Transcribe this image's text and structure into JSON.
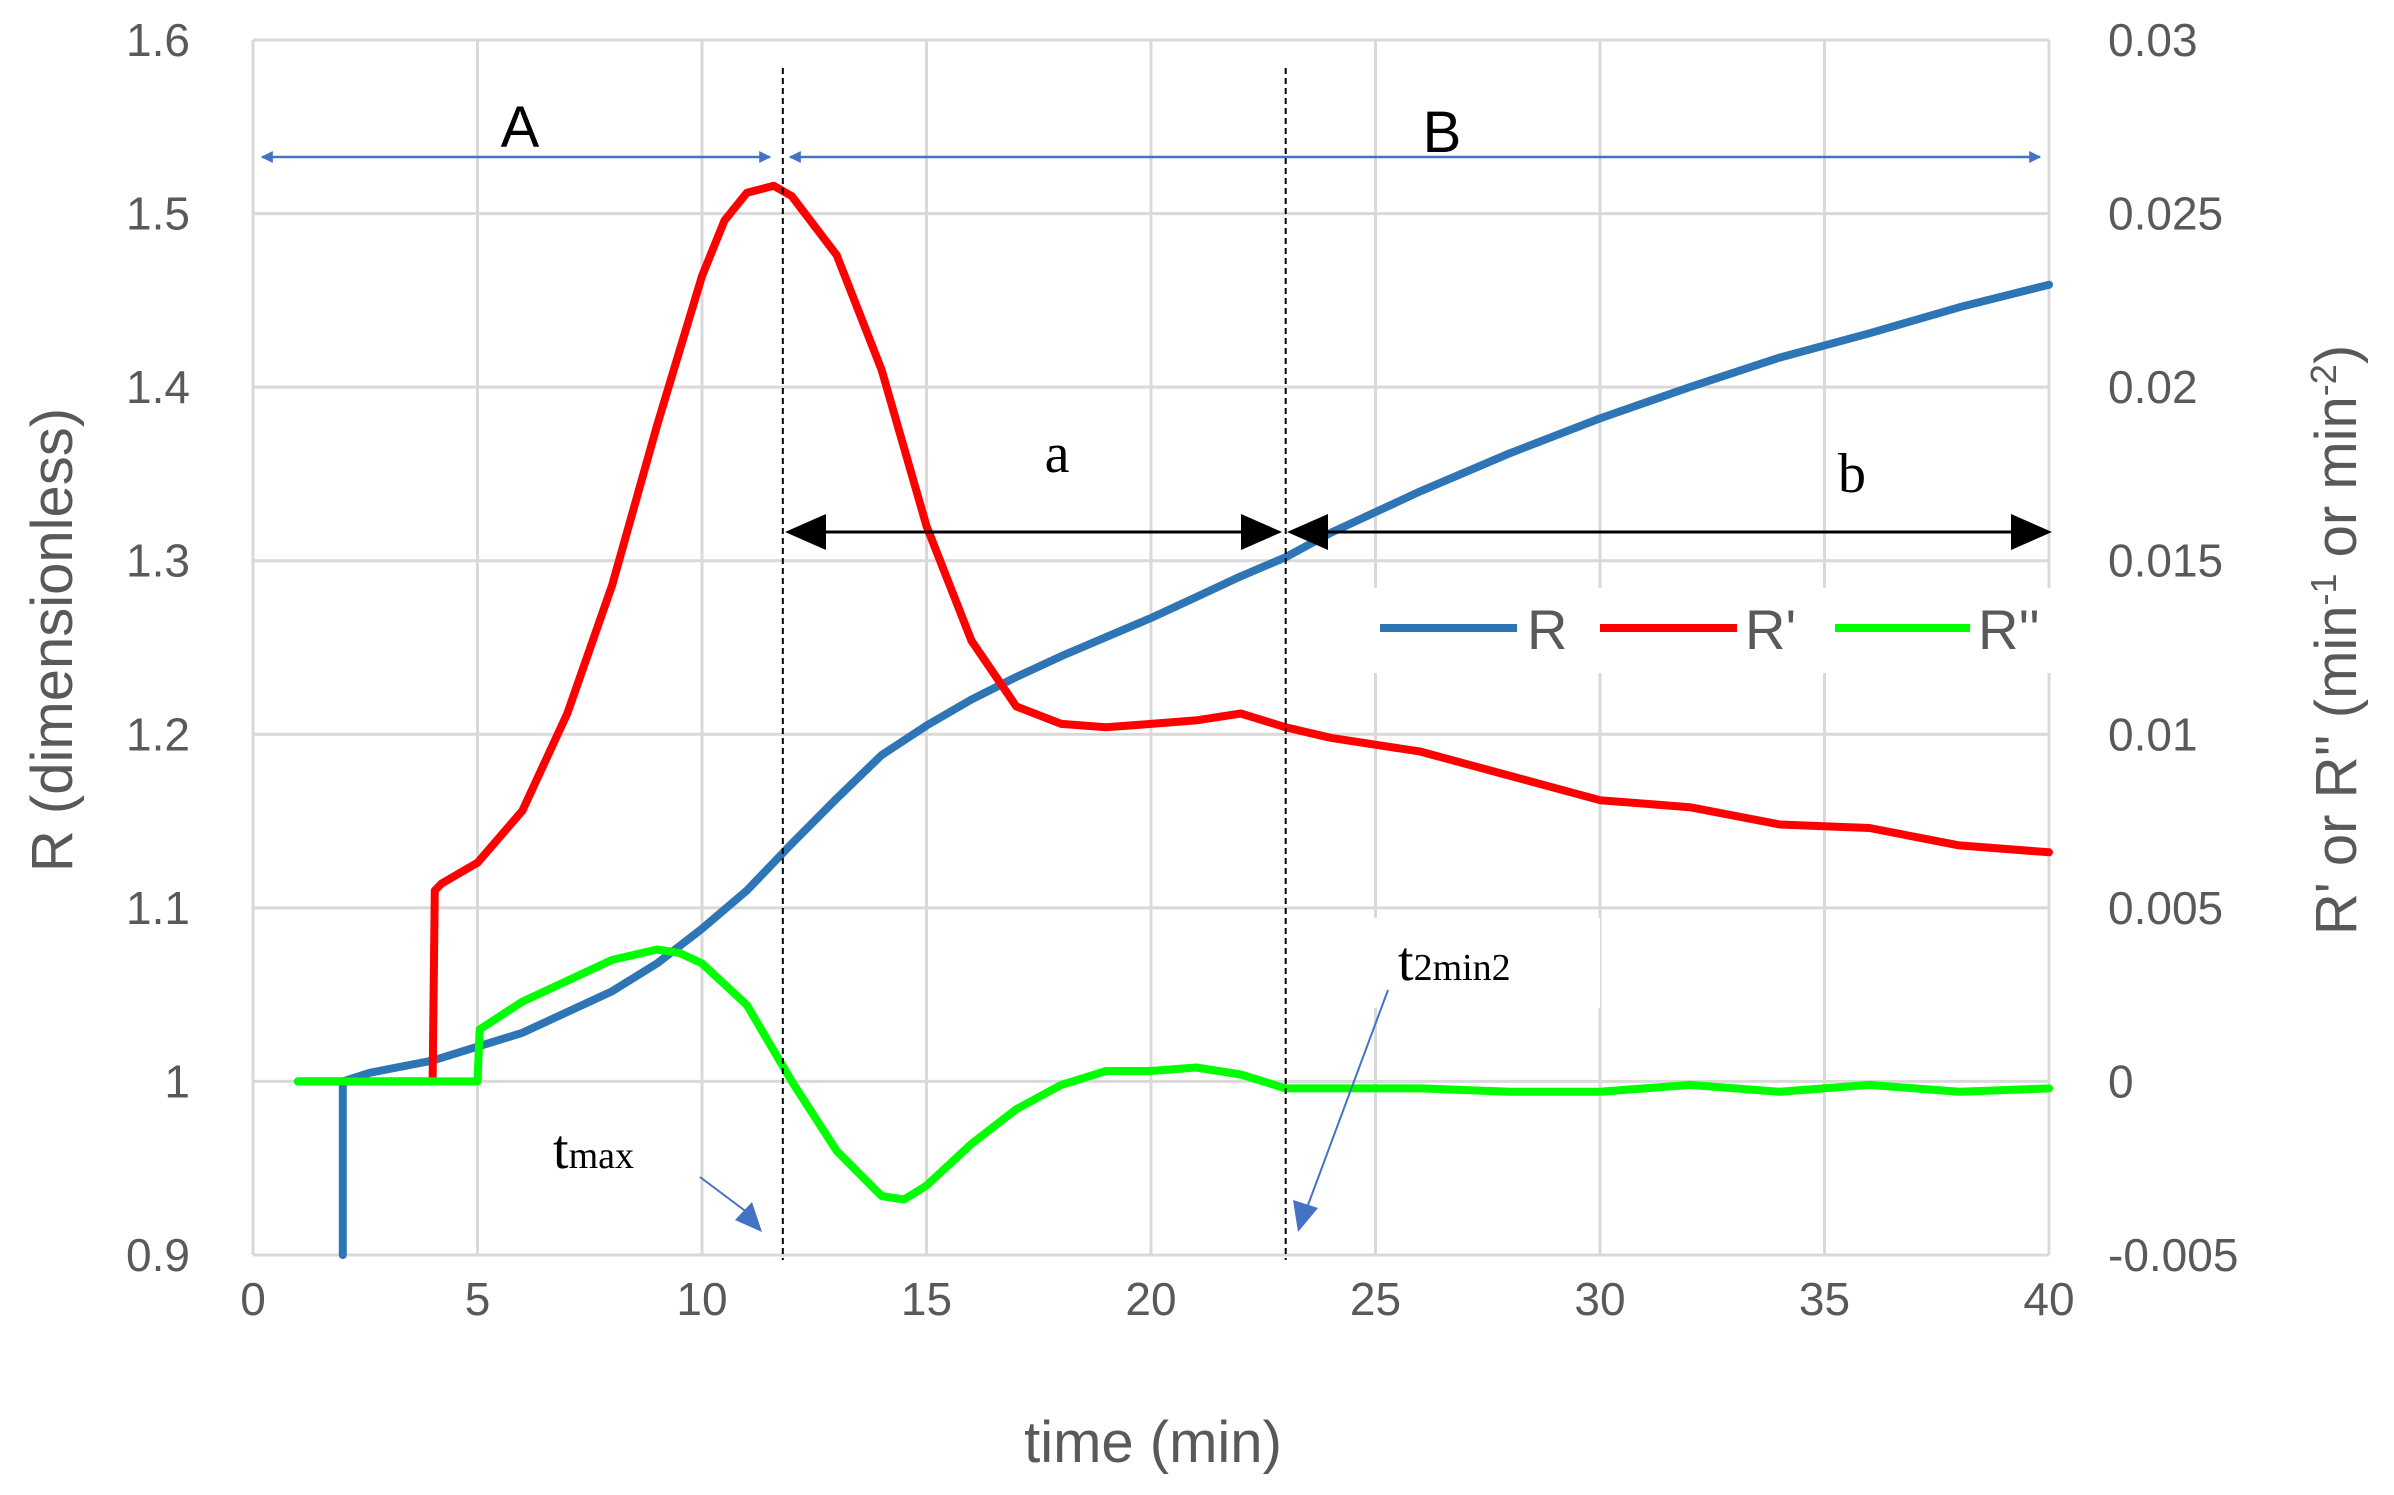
{
  "chart_data": {
    "type": "line",
    "xlabel": "time (min)",
    "ylabel": "R (dimensionless)",
    "y2label_parts": [
      "R' or R'' (min",
      "-1",
      " or min",
      "-2",
      ")"
    ],
    "xlim": [
      0,
      40
    ],
    "ylim": [
      0.9,
      1.6
    ],
    "y2lim": [
      -0.005,
      0.03
    ],
    "grid": true,
    "legend_position": "center-right",
    "x_ticks": [
      "0",
      "5",
      "10",
      "15",
      "20",
      "25",
      "30",
      "35",
      "40"
    ],
    "y_ticks": [
      "0.9",
      "1",
      "1.1",
      "1.2",
      "1.3",
      "1.4",
      "1.5",
      "1.6"
    ],
    "y2_ticks": [
      "-0.005",
      "0",
      "0.005",
      "0.01",
      "0.015",
      "0.02",
      "0.025",
      "0.03"
    ],
    "series": [
      {
        "name": "R",
        "axis": "left",
        "color": "#2E75B6",
        "x": [
          2,
          2,
          2.6,
          4,
          6,
          8,
          9,
          10,
          11,
          12,
          13,
          14,
          15,
          16,
          17,
          18,
          19,
          20,
          21,
          22,
          23,
          24,
          26,
          28,
          30,
          32,
          34,
          36,
          38,
          40
        ],
        "y": [
          0.9,
          1.0,
          1.005,
          1.012,
          1.028,
          1.052,
          1.068,
          1.088,
          1.11,
          1.137,
          1.163,
          1.188,
          1.205,
          1.22,
          1.233,
          1.245,
          1.256,
          1.267,
          1.279,
          1.291,
          1.302,
          1.316,
          1.34,
          1.362,
          1.382,
          1.4,
          1.417,
          1.431,
          1.446,
          1.459
        ]
      },
      {
        "name": "R'",
        "axis": "right",
        "color": "#FF0000",
        "x": [
          1,
          4,
          4.05,
          4.2,
          5,
          6,
          7,
          8,
          9,
          10,
          10.5,
          11,
          11.6,
          12,
          13,
          14,
          15,
          16,
          17,
          18,
          19,
          20,
          21,
          22,
          23,
          24,
          26,
          28,
          30,
          32,
          34,
          36,
          38,
          40
        ],
        "y": [
          0.0,
          0.0,
          0.0055,
          0.0057,
          0.0063,
          0.0078,
          0.0106,
          0.0143,
          0.0189,
          0.0232,
          0.0248,
          0.0256,
          0.0258,
          0.0255,
          0.0238,
          0.0205,
          0.016,
          0.0127,
          0.0108,
          0.0103,
          0.0102,
          0.0103,
          0.0104,
          0.0106,
          0.0102,
          0.0099,
          0.0095,
          0.0088,
          0.0081,
          0.0079,
          0.0074,
          0.0073,
          0.0068,
          0.0066
        ]
      },
      {
        "name": "R''",
        "axis": "right",
        "color": "#00FF00",
        "x": [
          1,
          5,
          5.05,
          6,
          7,
          8,
          9,
          9.5,
          10,
          11,
          12,
          13,
          14,
          14.5,
          15,
          16,
          17,
          18,
          19,
          20,
          21,
          22,
          23,
          24,
          26,
          28,
          30,
          32,
          34,
          36,
          38,
          40
        ],
        "y": [
          0.0,
          0.0,
          0.0015,
          0.0023,
          0.0029,
          0.0035,
          0.0038,
          0.0037,
          0.0034,
          0.0022,
          0.0,
          -0.002,
          -0.0033,
          -0.0034,
          -0.003,
          -0.0018,
          -0.0008,
          -0.0001,
          0.0003,
          0.0003,
          0.0004,
          0.0002,
          -0.0002,
          -0.0002,
          -0.0002,
          -0.0003,
          -0.0003,
          -0.0001,
          -0.0003,
          -0.0001,
          -0.0003,
          -0.0002
        ]
      }
    ],
    "annotations": {
      "A": "A",
      "B": "B",
      "a": "a",
      "b": "b",
      "tmax_main": "t",
      "tmax_sub": "max",
      "t2min2_main": "t",
      "t2min2_sub": "2min2"
    },
    "vlines_x": [
      11.8,
      23.0
    ]
  }
}
